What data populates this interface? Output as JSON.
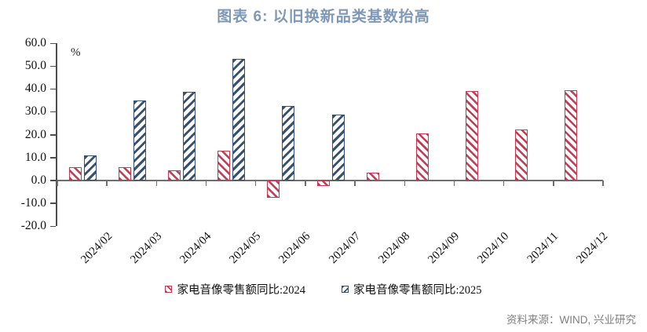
{
  "title": "图表 6:  以旧换新品类基数抬高",
  "unit_label": "%",
  "source_text": "资料来源：WIND, 兴业研究",
  "colors": {
    "title": "#7e98b6",
    "series_2024": "#c43a50",
    "series_2025": "#36516f",
    "axis": "#4d4d4d",
    "baseline": "#6e6e6e",
    "source_text": "#808080"
  },
  "legend": [
    {
      "label": "家电音像零售额同比:2024",
      "marker": "red-backslash-hatch"
    },
    {
      "label": "家电音像零售额同比:2025",
      "marker": "navy-slash-hatch"
    }
  ],
  "chart_data": {
    "type": "bar",
    "title": "图表 6: 以旧换新品类基数抬高",
    "ylabel": "%",
    "xlabel": "",
    "categories": [
      "2024/02",
      "2024/03",
      "2024/04",
      "2024/05",
      "2024/06",
      "2024/07",
      "2024/08",
      "2024/09",
      "2024/10",
      "2024/11",
      "2024/12"
    ],
    "series": [
      {
        "name": "家电音像零售额同比:2024",
        "color": "#c43a50",
        "hatch": "\\",
        "values": [
          5.7,
          5.8,
          4.5,
          12.9,
          -7.6,
          -2.4,
          3.4,
          20.5,
          39.2,
          22.2,
          39.3
        ]
      },
      {
        "name": "家电音像零售额同比:2025",
        "color": "#36516f",
        "hatch": "/",
        "values": [
          10.9,
          35.1,
          38.8,
          53.0,
          32.4,
          28.7,
          null,
          null,
          null,
          null,
          null
        ]
      }
    ],
    "ylim": [
      -20,
      60
    ],
    "ytick_step": 10,
    "yticks": [
      "60.0",
      "50.0",
      "40.0",
      "30.0",
      "20.0",
      "10.0",
      "0.0",
      "-10.0",
      "-20.0"
    ],
    "grid": false,
    "legend_position": "bottom"
  }
}
